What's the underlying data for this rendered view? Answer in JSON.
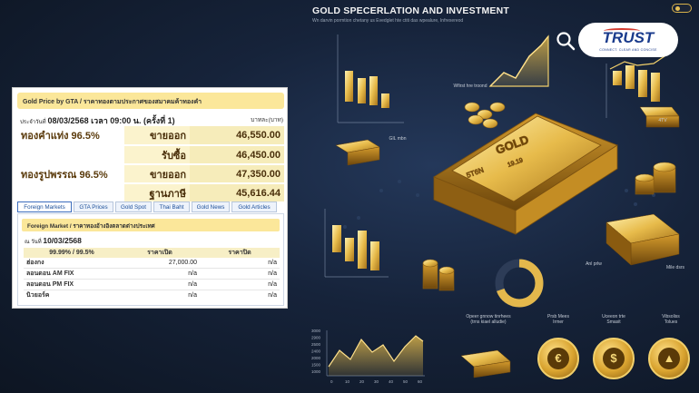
{
  "infographic": {
    "title": "GOLD SPECERLATION AND INVESTMENT",
    "subtitle": "Wn darvin pormtion chetany us Evedglet hte ctiti das wpealure, Infrexereod",
    "logo": {
      "brand": "TRUST",
      "tagline": "CONNECT. CLEAR AND CONCISE"
    },
    "bar_text_1": "GOLD",
    "bar_text_2": "19.19",
    "bar_text_3": "5T6N",
    "small_bar_text": "GOLD",
    "labels": {
      "eflow_troond": "Wfirst hre troond",
      "bars_label": "4TV",
      "bar_prlw": "Anl prlw",
      "mlw_dsrs": "Mile dsrs",
      "gold_mbn": "GIL mbn"
    },
    "bottom_labels": [
      "Opeer gnnow tinrhees\n(trns kiael alludie)",
      "Prsb Mees\nIrmer",
      "Uceeon trte\nSmasit",
      "Vibsoliss\nTolues"
    ],
    "axis_labels_y": [
      "3000",
      "2900",
      "2500",
      "2400",
      "2000",
      "1500",
      "1000"
    ],
    "axis_labels_x": [
      "0",
      "10",
      "20",
      "30",
      "40",
      "50",
      "60"
    ],
    "medallion_glyphs": [
      "€",
      "$",
      "▲"
    ],
    "colors": {
      "gold": "#e6bf55",
      "navy": "#16233a"
    }
  },
  "gta": {
    "header": "Gold Price by GTA / ราคาทองตามประกาศของสมาคมค้าทองคำ",
    "date_label": "ประจำวันที่",
    "date_value": "08/03/2568 เวลา 09:00 น. (ครั้งที่ 1)",
    "unit": "บาทละ(บาท)",
    "rows": [
      {
        "name": "ทองคำแท่ง 96.5%",
        "label": "ขายออก",
        "value": "46,550.00"
      },
      {
        "name": "",
        "label": "รับซื้อ",
        "value": "46,450.00"
      },
      {
        "name": "ทองรูปพรรณ 96.5%",
        "label": "ขายออก",
        "value": "47,350.00"
      },
      {
        "name": "",
        "label": "ฐานภาษี",
        "value": "45,616.44"
      }
    ]
  },
  "tabs": [
    {
      "label": "Foreign Markets",
      "active": true
    },
    {
      "label": "GTA Prices",
      "active": false
    },
    {
      "label": "Gold Spot",
      "active": false
    },
    {
      "label": "Thai Baht",
      "active": false
    },
    {
      "label": "Gold News",
      "active": false
    },
    {
      "label": "Gold Articles",
      "active": false
    }
  ],
  "foreign_market": {
    "header": "Foreign Market / ราคาทองอ้างอิงตลาดต่างประเทศ",
    "date_label": "ณ วันที่",
    "date_value": "10/03/2568",
    "columns": [
      "99.99% / 99.5%",
      "ราคาเปิด",
      "ราคาปิด"
    ],
    "rows": [
      {
        "name": "ฮ่องกง",
        "open": "27,000.00",
        "close": "n/a"
      },
      {
        "name": "ลอนดอน AM FIX",
        "open": "n/a",
        "close": "n/a"
      },
      {
        "name": "ลอนดอน PM FIX",
        "open": "n/a",
        "close": "n/a"
      },
      {
        "name": "นิวยอร์ค",
        "open": "n/a",
        "close": "n/a"
      }
    ]
  }
}
